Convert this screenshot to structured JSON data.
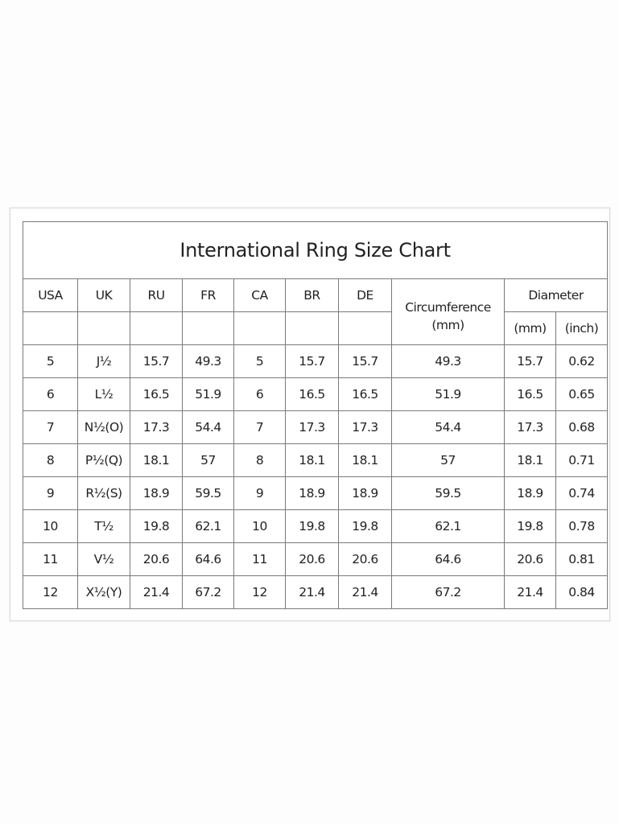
{
  "title": "International Ring Size Chart",
  "headers": {
    "usa": "USA",
    "uk": "UK",
    "ru": "RU",
    "fr": "FR",
    "ca": "CA",
    "br": "BR",
    "de": "DE",
    "circumference": "Circumference",
    "circumference_unit": "(mm)",
    "diameter": "Diameter",
    "diameter_mm": "(mm)",
    "diameter_inch": "(inch)"
  },
  "rows": [
    [
      "5",
      "J½",
      "15.7",
      "49.3",
      "5",
      "15.7",
      "15.7",
      "49.3",
      "15.7",
      "0.62"
    ],
    [
      "6",
      "L½",
      "16.5",
      "51.9",
      "6",
      "16.5",
      "16.5",
      "51.9",
      "16.5",
      "0.65"
    ],
    [
      "7",
      "N½(O)",
      "17.3",
      "54.4",
      "7",
      "17.3",
      "17.3",
      "54.4",
      "17.3",
      "0.68"
    ],
    [
      "8",
      "P½(Q)",
      "18.1",
      "57",
      "8",
      "18.1",
      "18.1",
      "57",
      "18.1",
      "0.71"
    ],
    [
      "9",
      "R½(S)",
      "18.9",
      "59.5",
      "9",
      "18.9",
      "18.9",
      "59.5",
      "18.9",
      "0.74"
    ],
    [
      "10",
      "T½",
      "19.8",
      "62.1",
      "10",
      "19.8",
      "19.8",
      "62.1",
      "19.8",
      "0.78"
    ],
    [
      "11",
      "V½",
      "20.6",
      "64.6",
      "11",
      "20.6",
      "20.6",
      "64.6",
      "20.6",
      "0.81"
    ],
    [
      "12",
      "X½(Y)",
      "21.4",
      "67.2",
      "12",
      "21.4",
      "21.4",
      "67.2",
      "21.4",
      "0.84"
    ]
  ]
}
